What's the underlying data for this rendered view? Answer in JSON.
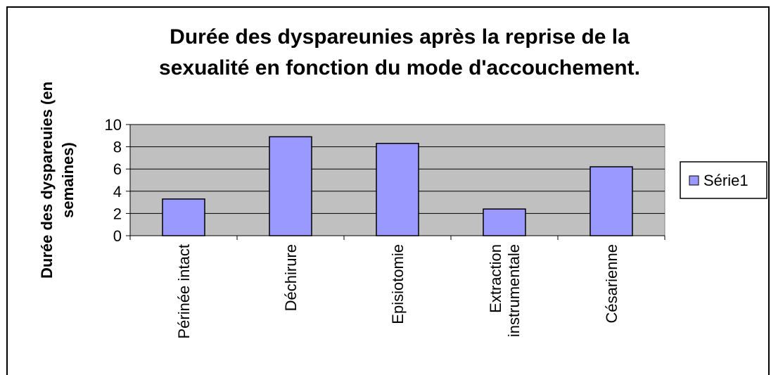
{
  "chart_data": {
    "type": "bar",
    "title": [
      "Durée des dyspareunies après la reprise de la",
      "sexualité en fonction du mode d'accouchement."
    ],
    "y_label": [
      "Durée des dyspareuies (en",
      "semaines)"
    ],
    "categories": [
      "Périnée intact",
      "Déchirure",
      "Episiotomie",
      "Extraction instrumentale",
      "Césarienne"
    ],
    "series": [
      {
        "name": "Série1",
        "color": "#9999ff",
        "values": [
          3.3,
          8.9,
          8.3,
          2.4,
          6.2
        ]
      }
    ],
    "ylim": [
      0,
      10
    ],
    "yticks": [
      0,
      2,
      4,
      6,
      8,
      10
    ],
    "grid": true,
    "legend": "right"
  }
}
